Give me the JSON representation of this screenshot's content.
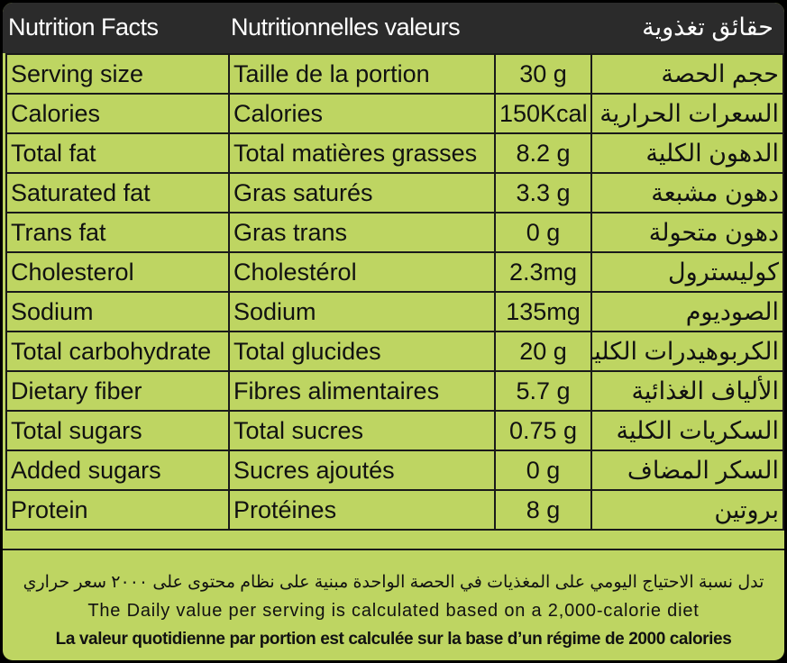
{
  "header": {
    "title_en": "Nutrition Facts",
    "title_fr": "Nutritionnelles valeurs",
    "title_ar": "حقائق تغذوية"
  },
  "rows": [
    {
      "en": "Serving size",
      "fr": "Taille de la portion",
      "value": "30 g",
      "ar": "حجم الحصة"
    },
    {
      "en": "Calories",
      "fr": "Calories",
      "value": "150Kcal",
      "ar": "السعرات الحرارية"
    },
    {
      "en": "Total fat",
      "fr": "Total matières grasses",
      "value": "8.2 g",
      "ar": "الدهون الكلية"
    },
    {
      "en": "Saturated fat",
      "fr": "Gras saturés",
      "value": "3.3 g",
      "ar": "دهون مشبعة"
    },
    {
      "en": "Trans fat",
      "fr": "Gras trans",
      "value": "0 g",
      "ar": "دهون متحولة"
    },
    {
      "en": "Cholesterol",
      "fr": "Cholestérol",
      "value": "2.3mg",
      "ar": "كوليسترول"
    },
    {
      "en": "Sodium",
      "fr": "Sodium",
      "value": "135mg",
      "ar": "الصوديوم"
    },
    {
      "en": "Total carbohydrate",
      "fr": "Total glucides",
      "value": "20 g",
      "ar": "الكربوهيدرات الكلية"
    },
    {
      "en": "Dietary fiber",
      "fr": "Fibres alimentaires",
      "value": "5.7 g",
      "ar": "الألياف الغذائية"
    },
    {
      "en": "Total sugars",
      "fr": "Total sucres",
      "value": "0.75 g",
      "ar": "السكريات الكلية"
    },
    {
      "en": "Added sugars",
      "fr": "Sucres ajoutés",
      "value": "0 g",
      "ar": "السكر المضاف"
    },
    {
      "en": "Protein",
      "fr": "Protéines",
      "value": "8 g",
      "ar": "بروتين"
    }
  ],
  "footer": {
    "note_ar": "تدل نسبة الاحتياج اليومي على المغذيات في الحصة الواحدة مبنية على نظام محتوى على ٢٠٠٠ سعر حراري",
    "note_en": "The Daily value per serving is calculated based on a 2,000-calorie diet",
    "note_fr": "La valeur quotidienne par portion est calculée sur la base d’un régime de 2000 calories"
  },
  "colors": {
    "panel_background": "#bed562",
    "header_background": "#2b2b2b",
    "border": "#1a1a1a"
  }
}
